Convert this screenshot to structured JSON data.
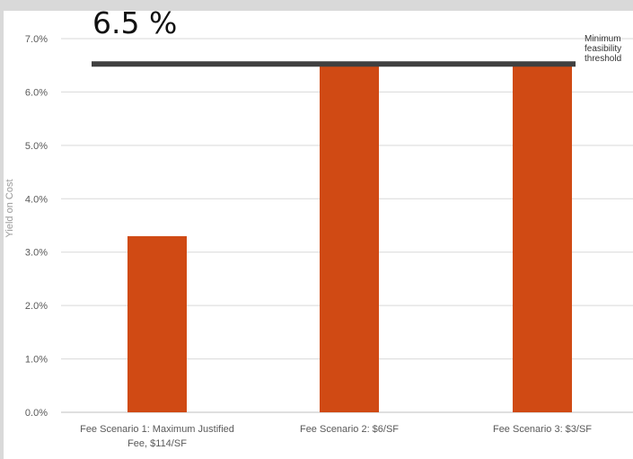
{
  "chart_data": {
    "type": "bar",
    "categories": [
      [
        "Fee Scenario 1: Maximum Justified",
        "Fee, $114/SF"
      ],
      [
        "Fee Scenario 2: $6/SF"
      ],
      [
        "Fee Scenario 3: $3/SF"
      ]
    ],
    "values": [
      0.033,
      0.065,
      0.065
    ],
    "ylim": [
      0,
      0.07
    ],
    "yticks": [
      "0.0%",
      "1.0%",
      "2.0%",
      "3.0%",
      "4.0%",
      "5.0%",
      "6.0%",
      "7.0%"
    ],
    "ylabel": "Yield on Cost",
    "grid": true,
    "threshold": {
      "value": 0.065,
      "label": "6.5 %",
      "note_lines": [
        "Minimum",
        "feasibility",
        "threshold"
      ],
      "color": "#404040"
    },
    "colors": {
      "bar": "#d04a14",
      "grid": "#d9d9d9",
      "axis": "#bfbfbf"
    }
  }
}
